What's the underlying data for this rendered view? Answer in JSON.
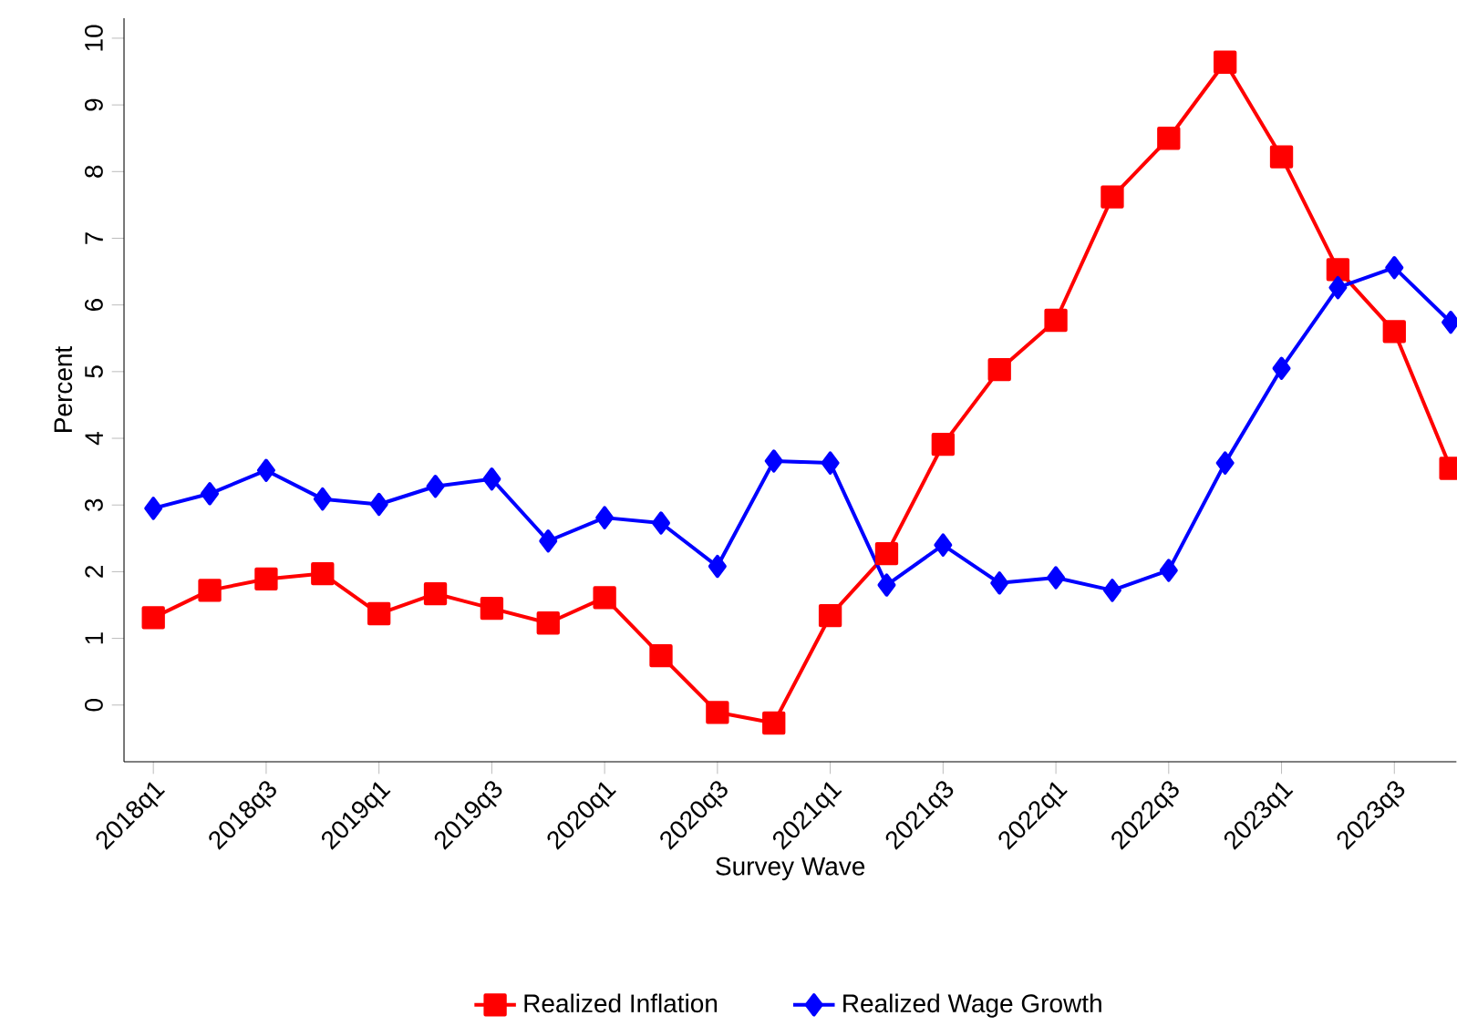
{
  "chart_data": {
    "type": "line",
    "xlabel": "Survey Wave",
    "ylabel": "Percent",
    "categories": [
      "2018q1",
      null,
      "2018q3",
      null,
      "2019q1",
      null,
      "2019q3",
      null,
      "2020q1",
      null,
      "2020q3",
      null,
      "2021q1",
      null,
      "2021q3",
      null,
      "2022q1",
      null,
      "2022q3",
      null,
      "2023q1",
      null,
      "2023q3",
      null
    ],
    "series": [
      {
        "name": "Realized Inflation",
        "color": "#ff0000",
        "marker": "square",
        "values": [
          1.31,
          1.72,
          1.89,
          1.97,
          1.37,
          1.67,
          1.45,
          1.23,
          1.61,
          0.74,
          -0.11,
          -0.27,
          1.34,
          2.27,
          3.91,
          5.03,
          5.77,
          7.62,
          8.5,
          9.64,
          8.22,
          6.53,
          5.6,
          3.55
        ]
      },
      {
        "name": "Realized Wage Growth",
        "color": "#0000ff",
        "marker": "diamond",
        "values": [
          2.95,
          3.17,
          3.52,
          3.09,
          3.01,
          3.28,
          3.39,
          2.46,
          2.81,
          2.73,
          2.08,
          3.66,
          3.63,
          1.8,
          2.4,
          1.83,
          1.91,
          1.72,
          2.02,
          3.63,
          5.05,
          6.26,
          6.56,
          5.74
        ]
      }
    ],
    "ylim": [
      -0.85,
      10.3
    ],
    "yticks": [
      0,
      1,
      2,
      3,
      4,
      5,
      6,
      7,
      8,
      9,
      10
    ],
    "grid": false,
    "legend": "bottom"
  }
}
